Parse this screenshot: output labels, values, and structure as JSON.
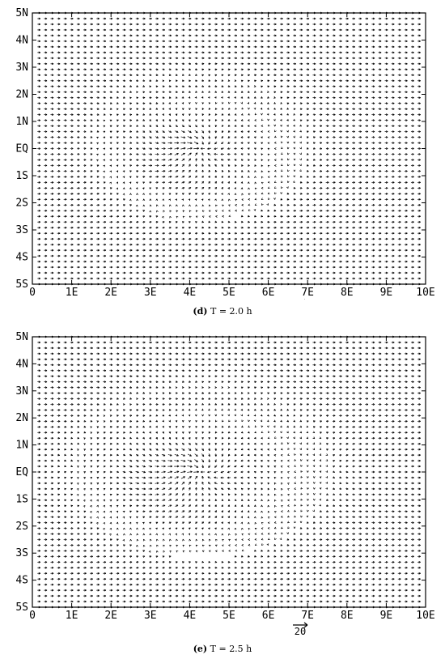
{
  "chart_data": [
    {
      "type": "vector-field",
      "panel": "d",
      "caption_letter": "(d)",
      "caption_text": "T = 2.0 h",
      "xlim": [
        0,
        10
      ],
      "ylim": [
        -5,
        5
      ],
      "x_ticks": [
        "0",
        "1E",
        "2E",
        "3E",
        "4E",
        "5E",
        "6E",
        "7E",
        "8E",
        "9E",
        "10E"
      ],
      "y_ticks": [
        "5N",
        "4N",
        "3N",
        "2N",
        "1N",
        "EQ",
        "1S",
        "2S",
        "3S",
        "4S",
        "5S"
      ],
      "reference_vector": "20",
      "background_flow": "westerly",
      "convergence_center": [
        4.3,
        0
      ],
      "disturbance_radius": [
        2.7,
        2.7
      ]
    },
    {
      "type": "vector-field",
      "panel": "e",
      "caption_letter": "(e)",
      "caption_text": "T = 2.5 h",
      "xlim": [
        0,
        10
      ],
      "ylim": [
        -5,
        5
      ],
      "x_ticks": [
        "0",
        "1E",
        "2E",
        "3E",
        "4E",
        "5E",
        "6E",
        "7E",
        "8E",
        "9E",
        "10E"
      ],
      "y_ticks": [
        "5N",
        "4N",
        "3N",
        "2N",
        "1N",
        "EQ",
        "1S",
        "2S",
        "3S",
        "4S",
        "5S"
      ],
      "reference_vector": "20",
      "background_flow": "westerly",
      "convergence_center": [
        4.3,
        0
      ],
      "disturbance_radius": [
        3.3,
        3.2
      ]
    }
  ]
}
